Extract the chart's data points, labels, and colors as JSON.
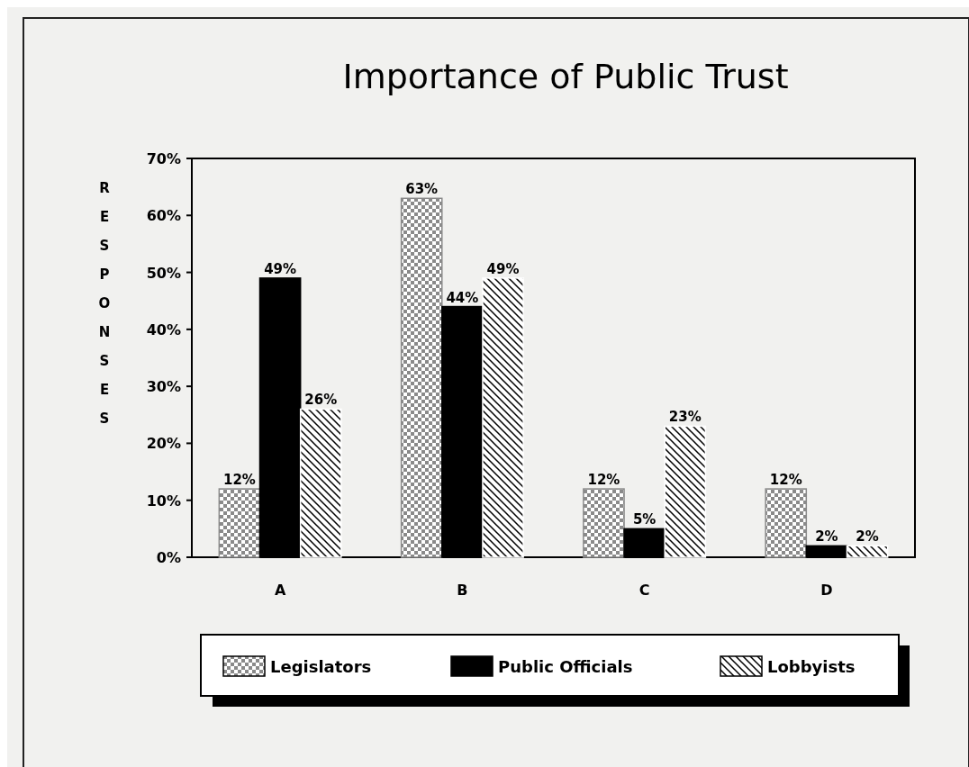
{
  "chart_data": {
    "type": "bar",
    "title": "Importance of Public Trust",
    "ylabel": "RESPONSES",
    "categories": [
      "A",
      "B",
      "C",
      "D"
    ],
    "series": [
      {
        "name": "Legislators",
        "color": "#8a8a8a",
        "values": [
          12,
          63,
          12,
          12
        ],
        "value_labels": [
          "12%",
          "63%",
          "12%",
          "12%"
        ]
      },
      {
        "name": "Public Officials",
        "color": "#000000",
        "values": [
          49,
          44,
          5,
          2
        ],
        "value_labels": [
          "49%",
          "44%",
          "5%",
          "2%"
        ]
      },
      {
        "name": "Lobbyists",
        "color": "#ffffff",
        "values": [
          26,
          49,
          23,
          2
        ],
        "value_labels": [
          "26%",
          "49%",
          "23%",
          "2%"
        ]
      }
    ],
    "ylim": [
      0,
      70
    ],
    "yticks": [
      {
        "value": 0,
        "label": "0%"
      },
      {
        "value": 10,
        "label": "10%"
      },
      {
        "value": 20,
        "label": "20%"
      },
      {
        "value": 30,
        "label": "30%"
      },
      {
        "value": 40,
        "label": "40%"
      },
      {
        "value": 50,
        "label": "50%"
      },
      {
        "value": 60,
        "label": "60%"
      },
      {
        "value": 70,
        "label": "70%"
      }
    ],
    "grid": false,
    "legend": "bottom"
  }
}
